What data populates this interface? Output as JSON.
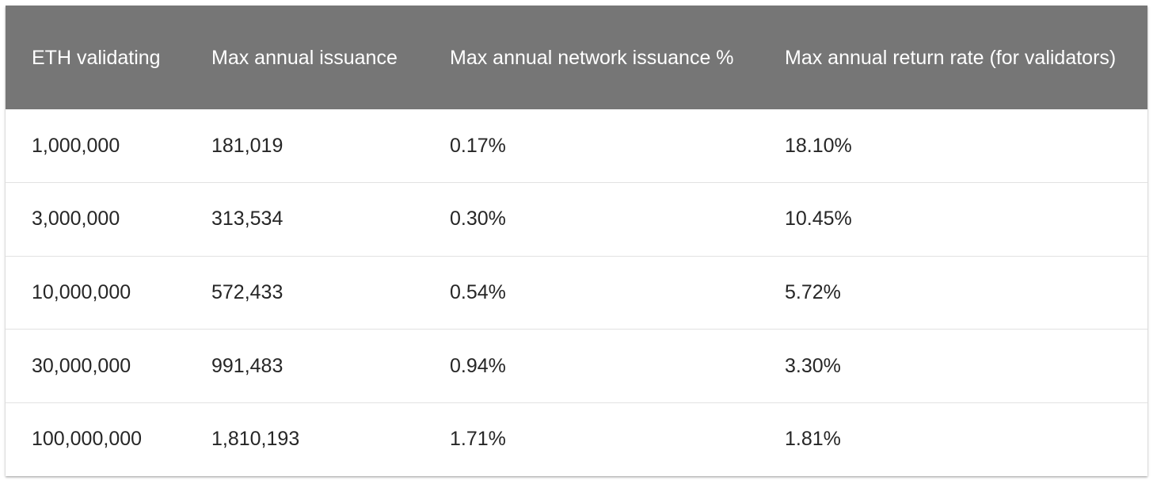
{
  "table": {
    "headers": [
      "ETH validating",
      "Max annual issuance",
      "Max annual network issuance %",
      "Max annual return rate (for validators)"
    ],
    "rows": [
      [
        "1,000,000",
        "181,019",
        "0.17%",
        "18.10%"
      ],
      [
        "3,000,000",
        "313,534",
        "0.30%",
        "10.45%"
      ],
      [
        "10,000,000",
        "572,433",
        "0.54%",
        "5.72%"
      ],
      [
        "30,000,000",
        "991,483",
        "0.94%",
        "3.30%"
      ],
      [
        "100,000,000",
        "1,810,193",
        "1.71%",
        "1.81%"
      ]
    ]
  },
  "colors": {
    "header_background": "#767676",
    "header_text": "#ffffff",
    "row_divider": "#e2e2e2"
  }
}
